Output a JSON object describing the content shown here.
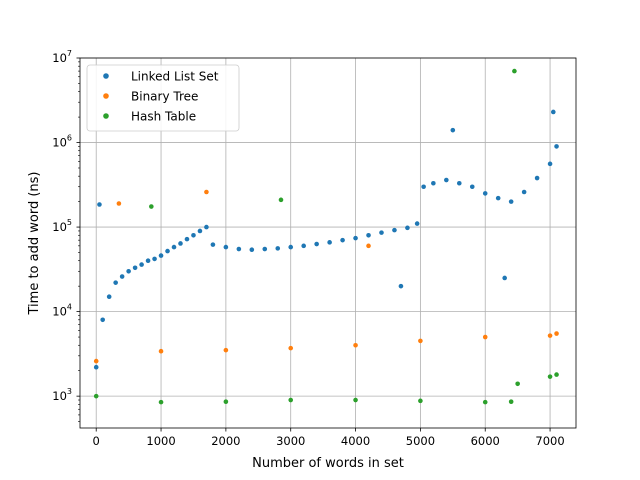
{
  "chart_data": {
    "type": "scatter",
    "title": "",
    "xlabel": "Number of words in set",
    "ylabel": "Time to add word (ns)",
    "xlim": [
      -250,
      7400
    ],
    "ylim": [
      420,
      10000000
    ],
    "yscale": "log",
    "grid": true,
    "legend_position": "top-left",
    "x_ticks": [
      0,
      1000,
      2000,
      3000,
      4000,
      5000,
      6000,
      7000
    ],
    "x_tick_labels": [
      "0",
      "1000",
      "2000",
      "3000",
      "4000",
      "5000",
      "6000",
      "7000"
    ],
    "y_ticks": [
      1000,
      10000,
      100000,
      1000000,
      10000000
    ],
    "y_tick_labels": [
      {
        "base": "10",
        "exp": "3"
      },
      {
        "base": "10",
        "exp": "4"
      },
      {
        "base": "10",
        "exp": "5"
      },
      {
        "base": "10",
        "exp": "6"
      },
      {
        "base": "10",
        "exp": "7"
      }
    ],
    "series": [
      {
        "name": "Linked List Set",
        "color": "#1f77b4",
        "points": [
          [
            0,
            2200
          ],
          [
            50,
            185000
          ],
          [
            100,
            8000
          ],
          [
            200,
            15000
          ],
          [
            300,
            22000
          ],
          [
            400,
            26000
          ],
          [
            500,
            30000
          ],
          [
            600,
            33000
          ],
          [
            700,
            36000
          ],
          [
            800,
            40000
          ],
          [
            900,
            42000
          ],
          [
            1000,
            46000
          ],
          [
            1100,
            52000
          ],
          [
            1200,
            58000
          ],
          [
            1300,
            64000
          ],
          [
            1400,
            72000
          ],
          [
            1500,
            80000
          ],
          [
            1600,
            90000
          ],
          [
            1700,
            100000
          ],
          [
            1800,
            62000
          ],
          [
            2000,
            58000
          ],
          [
            2200,
            55000
          ],
          [
            2400,
            54000
          ],
          [
            2600,
            55000
          ],
          [
            2800,
            56000
          ],
          [
            3000,
            58000
          ],
          [
            3200,
            60000
          ],
          [
            3400,
            63000
          ],
          [
            3600,
            66000
          ],
          [
            3800,
            70000
          ],
          [
            4000,
            74000
          ],
          [
            4200,
            80000
          ],
          [
            4400,
            86000
          ],
          [
            4600,
            92000
          ],
          [
            4800,
            98000
          ],
          [
            4950,
            110000
          ],
          [
            5050,
            300000
          ],
          [
            5200,
            330000
          ],
          [
            5400,
            360000
          ],
          [
            5600,
            330000
          ],
          [
            5800,
            300000
          ],
          [
            6000,
            250000
          ],
          [
            6200,
            220000
          ],
          [
            6400,
            200000
          ],
          [
            6600,
            260000
          ],
          [
            6800,
            380000
          ],
          [
            7000,
            560000
          ],
          [
            7100,
            900000
          ],
          [
            5500,
            1400000
          ],
          [
            7050,
            2300000
          ],
          [
            6300,
            25000
          ],
          [
            4700,
            20000
          ]
        ]
      },
      {
        "name": "Binary Tree",
        "color": "#ff7f0e",
        "points": [
          [
            0,
            2600
          ],
          [
            350,
            190000
          ],
          [
            1000,
            3400
          ],
          [
            1700,
            260000
          ],
          [
            2000,
            3500
          ],
          [
            3000,
            3700
          ],
          [
            4000,
            4000
          ],
          [
            4200,
            60000
          ],
          [
            5000,
            4500
          ],
          [
            6000,
            5000
          ],
          [
            7000,
            5200
          ],
          [
            7100,
            5500
          ]
        ]
      },
      {
        "name": "Hash Table",
        "color": "#2ca02c",
        "points": [
          [
            0,
            1000
          ],
          [
            850,
            175000
          ],
          [
            1000,
            850
          ],
          [
            2000,
            860
          ],
          [
            2850,
            210000
          ],
          [
            3000,
            900
          ],
          [
            4000,
            900
          ],
          [
            5000,
            880
          ],
          [
            6000,
            850
          ],
          [
            6400,
            860
          ],
          [
            6450,
            7000000
          ],
          [
            6500,
            1400
          ],
          [
            7000,
            1700
          ],
          [
            7100,
            1800
          ]
        ]
      }
    ]
  }
}
